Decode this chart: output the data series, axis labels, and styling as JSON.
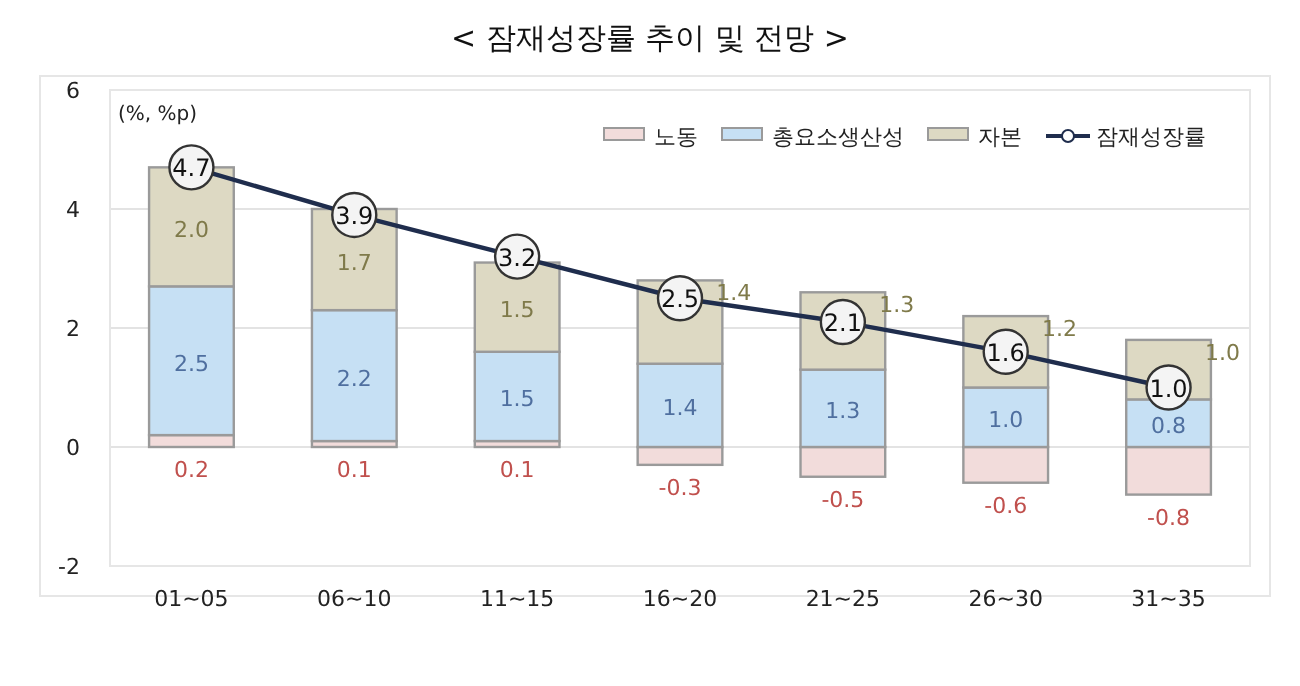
{
  "chart_data": {
    "type": "bar",
    "title": "< 잠재성장률 추이 및 전망 >",
    "ylabel": "(%, %p)",
    "categories": [
      "01~05",
      "06~10",
      "11~15",
      "16~20",
      "21~25",
      "26~30",
      "31~35"
    ],
    "stacked": true,
    "series": [
      {
        "name": "노동",
        "color": "#f2dcdb",
        "values": [
          0.2,
          0.1,
          0.1,
          -0.3,
          -0.5,
          -0.6,
          -0.8
        ],
        "value_labels": [
          "0.2",
          "0.1",
          "0.1",
          "-0.3",
          "-0.5",
          "-0.6",
          "-0.8"
        ]
      },
      {
        "name": "총요소생산성",
        "color": "#c6e0f4",
        "values": [
          2.5,
          2.2,
          1.5,
          1.4,
          1.3,
          1.0,
          0.8
        ],
        "value_labels": [
          "2.5",
          "2.2",
          "1.5",
          "1.4",
          "1.3",
          "1.0",
          "0.8"
        ]
      },
      {
        "name": "자본",
        "color": "#ddd9c3",
        "values": [
          2.0,
          1.7,
          1.5,
          1.4,
          1.3,
          1.2,
          1.0
        ],
        "value_labels": [
          "2.0",
          "1.7",
          "1.5",
          "1.4",
          "1.3",
          "1.2",
          "1.0"
        ]
      },
      {
        "name": "잠재성장률",
        "type": "line",
        "color": "#1f2d4d",
        "marker": "circle",
        "values": [
          4.7,
          3.9,
          3.2,
          2.5,
          2.1,
          1.6,
          1.0
        ],
        "value_labels": [
          "4.7",
          "3.9",
          "3.2",
          "2.5",
          "2.1",
          "1.6",
          "1.0"
        ]
      }
    ],
    "ylim": [
      -2,
      6
    ],
    "yticks": [
      -2,
      0,
      2,
      4,
      6
    ],
    "grid": "y",
    "legend": "top right"
  }
}
